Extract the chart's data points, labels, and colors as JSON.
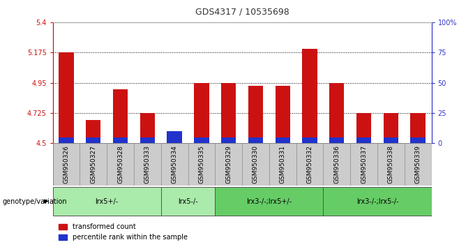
{
  "title": "GDS4317 / 10535698",
  "samples": [
    "GSM950326",
    "GSM950327",
    "GSM950328",
    "GSM950333",
    "GSM950334",
    "GSM950335",
    "GSM950329",
    "GSM950330",
    "GSM950331",
    "GSM950332",
    "GSM950336",
    "GSM950337",
    "GSM950338",
    "GSM950339"
  ],
  "red_values": [
    5.175,
    4.675,
    4.9,
    4.725,
    4.505,
    4.95,
    4.95,
    4.925,
    4.925,
    5.2,
    4.95,
    4.725,
    4.725,
    4.725
  ],
  "blue_percentiles": [
    5,
    5,
    5,
    5,
    10,
    5,
    5,
    5,
    5,
    5,
    5,
    5,
    5,
    5
  ],
  "ymin": 4.5,
  "ymax": 5.4,
  "yticks": [
    4.5,
    4.725,
    4.95,
    5.175,
    5.4
  ],
  "ytick_labels": [
    "4.5",
    "4.725",
    "4.95",
    "5.175",
    "5.4"
  ],
  "right_yticks_pct": [
    0,
    25,
    50,
    75,
    100
  ],
  "right_ytick_labels": [
    "0",
    "25",
    "50",
    "75",
    "100%"
  ],
  "hlines": [
    4.725,
    4.95,
    5.175
  ],
  "groups": [
    {
      "label": "lrx5+/-",
      "start": 0,
      "end": 4
    },
    {
      "label": "lrx5-/-",
      "start": 4,
      "end": 6
    },
    {
      "label": "lrx3-/-;lrx5+/-",
      "start": 6,
      "end": 10
    },
    {
      "label": "lrx3-/-;lrx5-/-",
      "start": 10,
      "end": 14
    }
  ],
  "bar_width": 0.55,
  "red_color": "#cc1111",
  "blue_color": "#2233cc",
  "bg_color": "#ffffff",
  "left_axis_color": "#cc1111",
  "right_axis_color": "#3333cc",
  "grid_color": "#000000",
  "sample_bg_color": "#cccccc",
  "group_color_light": "#aaeaaa",
  "group_color_dark": "#66cc66",
  "genotype_label": "genotype/variation",
  "legend_red": "transformed count",
  "legend_blue": "percentile rank within the sample"
}
